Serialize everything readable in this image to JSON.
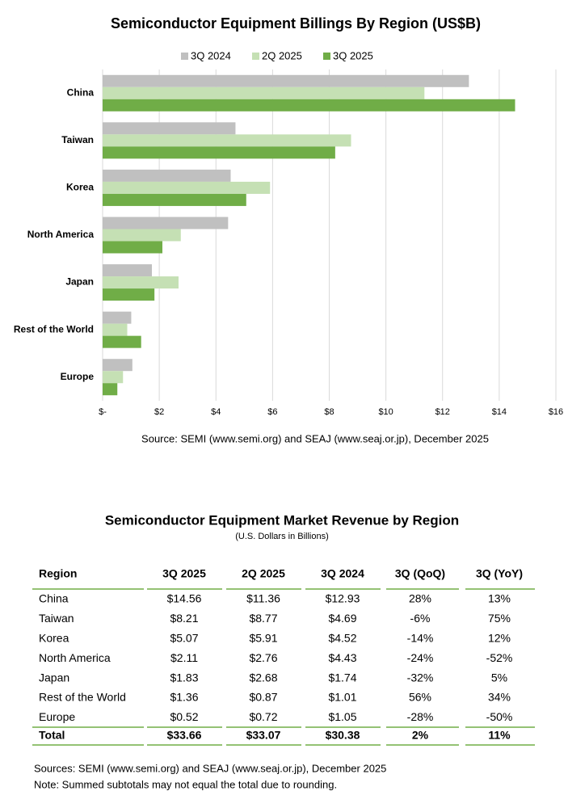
{
  "chart_data": {
    "type": "hbar",
    "title": "Semiconductor Equipment Billings By Region (US$B)",
    "categories": [
      "China",
      "Taiwan",
      "Korea",
      "North America",
      "Japan",
      "Rest of the World",
      "Europe"
    ],
    "series": [
      {
        "name": "3Q 2024",
        "color": "#c0c0c0",
        "values": [
          12.93,
          4.69,
          4.52,
          4.43,
          1.74,
          1.01,
          1.05
        ]
      },
      {
        "name": "2Q 2025",
        "color": "#c5e0b4",
        "values": [
          11.36,
          8.77,
          5.91,
          2.76,
          2.68,
          0.87,
          0.72
        ]
      },
      {
        "name": "3Q 2025",
        "color": "#70ad47",
        "values": [
          14.56,
          8.21,
          5.07,
          2.11,
          1.83,
          1.36,
          0.52
        ]
      }
    ],
    "xlim": [
      0,
      16
    ],
    "xticks": [
      {
        "value": 0,
        "label": "$-"
      },
      {
        "value": 2,
        "label": "$2"
      },
      {
        "value": 4,
        "label": "$4"
      },
      {
        "value": 6,
        "label": "$6"
      },
      {
        "value": 8,
        "label": "$8"
      },
      {
        "value": 10,
        "label": "$10"
      },
      {
        "value": 12,
        "label": "$12"
      },
      {
        "value": 14,
        "label": "$14"
      },
      {
        "value": 16,
        "label": "$16"
      }
    ],
    "grid": true,
    "legend": "top",
    "source": "Source: SEMI (www.semi.org) and SEAJ (www.seaj.or.jp), December 2025"
  },
  "table": {
    "title": "Semiconductor Equipment Market Revenue by Region",
    "subtitle": "(U.S. Dollars in Billions)",
    "headers": [
      "Region",
      "3Q 2025",
      "2Q 2025",
      "3Q 2024",
      "3Q (QoQ)",
      "3Q (YoY)"
    ],
    "rows": [
      [
        "China",
        "$14.56",
        "$11.36",
        "$12.93",
        "28%",
        "13%"
      ],
      [
        "Taiwan",
        "$8.21",
        "$8.77",
        "$4.69",
        "-6%",
        "75%"
      ],
      [
        "Korea",
        "$5.07",
        "$5.91",
        "$4.52",
        "-14%",
        "12%"
      ],
      [
        "North America",
        "$2.11",
        "$2.76",
        "$4.43",
        "-24%",
        "-52%"
      ],
      [
        "Japan",
        "$1.83",
        "$2.68",
        "$1.74",
        "-32%",
        "5%"
      ],
      [
        "Rest of the World",
        "$1.36",
        "$0.87",
        "$1.01",
        "56%",
        "34%"
      ],
      [
        "Europe",
        "$0.52",
        "$0.72",
        "$1.05",
        "-28%",
        "-50%"
      ]
    ],
    "total": [
      "Total",
      "$33.66",
      "$33.07",
      "$30.38",
      "2%",
      "11%"
    ],
    "notes": [
      "Sources: SEMI (www.semi.org) and SEAJ (www.seaj.or.jp), December 2025",
      "Note: Summed subtotals may not equal the total due to rounding."
    ]
  }
}
